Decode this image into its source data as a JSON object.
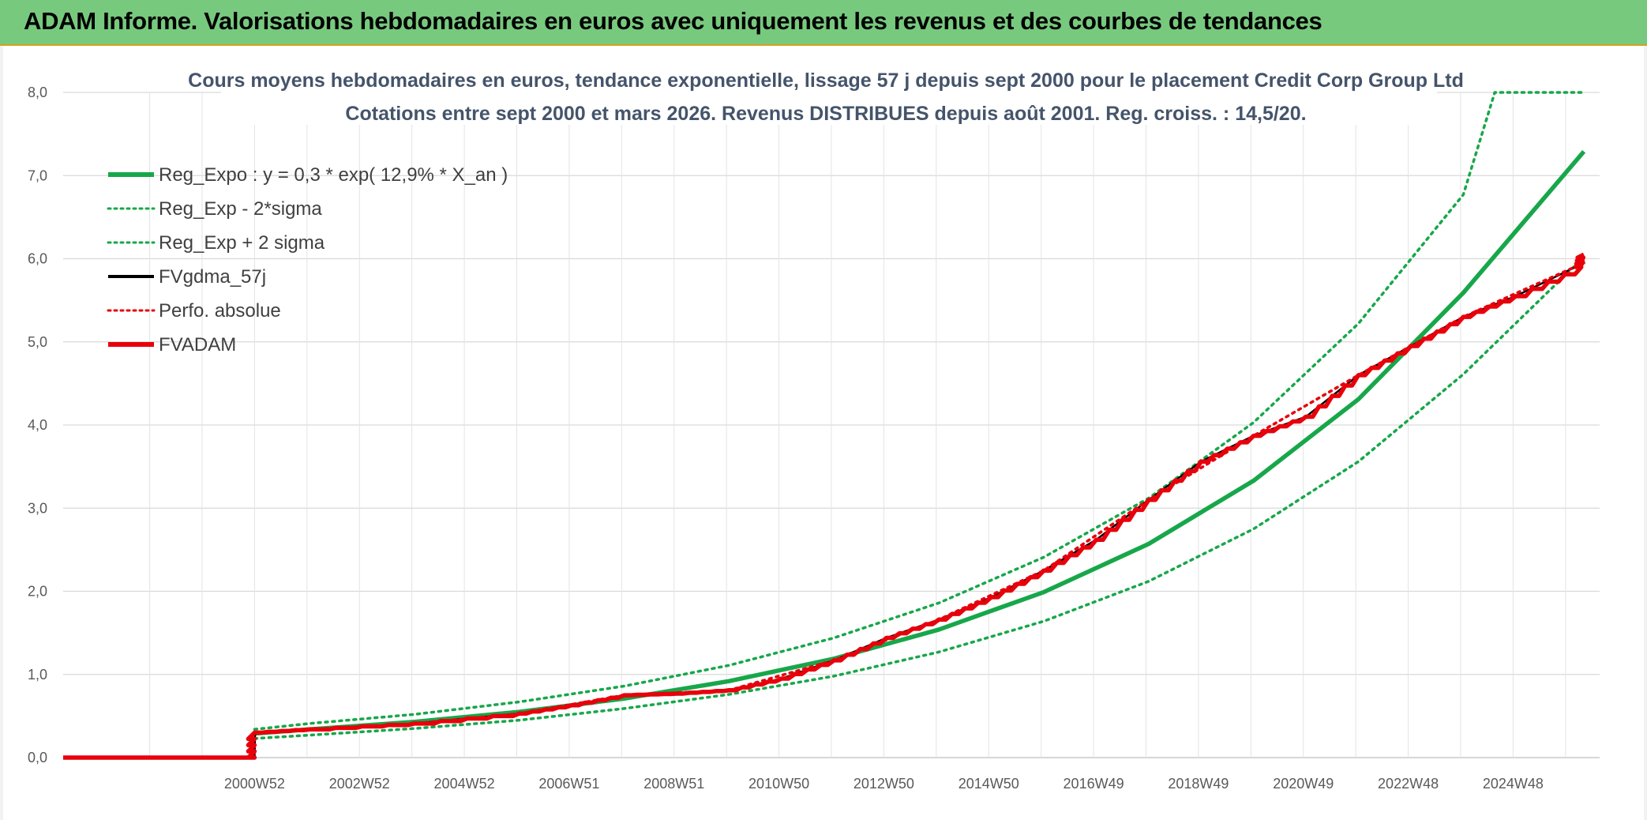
{
  "header": {
    "title": "ADAM Informe. Valorisations hebdomadaires en euros avec uniquement les revenus et des courbes de tendances"
  },
  "chart_data": {
    "type": "line",
    "title": "Cours moyens hebdomadaires en euros, tendance exponentielle, lissage 57 j depuis sept 2000 pour le placement Credit Corp Group Ltd",
    "subtitle": "Cotations entre sept 2000 et mars 2026. Revenus DISTRIBUES depuis août 2001. Reg. croiss. : 14,5/20.",
    "xlabel": "",
    "ylabel": "",
    "ylim": [
      0,
      8
    ],
    "yticks": [
      "0,0",
      "1,0",
      "2,0",
      "3,0",
      "4,0",
      "5,0",
      "6,0",
      "7,0",
      "8,0"
    ],
    "xticks": [
      "2000W52",
      "2002W52",
      "2004W52",
      "2006W51",
      "2008W51",
      "2010W50",
      "2012W50",
      "2014W50",
      "2016W49",
      "2018W49",
      "2020W49",
      "2022W48",
      "2024W48"
    ],
    "xlim": [
      1997.3,
      2026.6
    ],
    "grid": true,
    "legend_position": "top-left",
    "series": [
      {
        "name": "Reg_Expo : y = 0,3 * exp( 12,9% *  X_an )",
        "color": "#17a74a",
        "style": "solid",
        "x": [
          2000.95,
          2002,
          2004,
          2006,
          2008,
          2010,
          2012,
          2014,
          2016,
          2018,
          2020,
          2022,
          2024,
          2026.3
        ],
        "y": [
          0.29,
          0.34,
          0.43,
          0.55,
          0.71,
          0.92,
          1.19,
          1.54,
          1.99,
          2.57,
          3.33,
          4.31,
          5.59,
          7.29
        ]
      },
      {
        "name": "Reg_Exp - 2*sigma",
        "color": "#17a74a",
        "style": "dotted",
        "x": [
          2000.95,
          2002,
          2004,
          2006,
          2008,
          2010,
          2012,
          2014,
          2016,
          2018,
          2020,
          2022,
          2024,
          2026.3
        ],
        "y": [
          0.23,
          0.27,
          0.35,
          0.45,
          0.59,
          0.76,
          0.98,
          1.27,
          1.64,
          2.12,
          2.75,
          3.56,
          4.61,
          6.02
        ]
      },
      {
        "name": "Reg_Exp + 2 sigma",
        "color": "#17a74a",
        "style": "dotted",
        "x": [
          2000.95,
          2002,
          2004,
          2006,
          2008,
          2010,
          2012,
          2014,
          2016,
          2018,
          2020,
          2022,
          2024,
          2024.6,
          2026.3
        ],
        "y": [
          0.34,
          0.41,
          0.52,
          0.67,
          0.86,
          1.11,
          1.44,
          1.86,
          2.41,
          3.12,
          4.03,
          5.22,
          6.77,
          8.0,
          8.0
        ]
      },
      {
        "name": "FVgdma_57j",
        "color": "#000000",
        "style": "solid",
        "x": [
          1997.3,
          2000.95,
          2000.96,
          2002,
          2004,
          2006,
          2007,
          2008,
          2009,
          2010,
          2011,
          2012,
          2013,
          2014,
          2015,
          2016,
          2017,
          2018,
          2019,
          2020,
          2021,
          2022,
          2023,
          2024,
          2025,
          2026.3
        ],
        "y": [
          0,
          0,
          0.3,
          0.34,
          0.41,
          0.53,
          0.63,
          0.75,
          0.77,
          0.81,
          0.95,
          1.17,
          1.44,
          1.66,
          1.93,
          2.25,
          2.62,
          3.1,
          3.56,
          3.87,
          4.1,
          4.6,
          4.95,
          5.3,
          5.55,
          5.95
        ]
      },
      {
        "name": "Perfo. absolue",
        "color": "#e8000b",
        "style": "dotted",
        "x": [
          2000.95,
          2002,
          2004,
          2006,
          2008,
          2010,
          2012,
          2014,
          2016,
          2018,
          2020,
          2022,
          2024,
          2026.3
        ],
        "y": [
          0.3,
          0.34,
          0.41,
          0.53,
          0.75,
          0.81,
          1.17,
          1.66,
          2.25,
          3.1,
          3.87,
          4.6,
          5.3,
          5.95
        ]
      },
      {
        "name": "FVADAM",
        "color": "#e8000b",
        "style": "solid-thick",
        "x": [
          1997.3,
          2000.95,
          2000.95,
          2002,
          2004,
          2006,
          2007,
          2008,
          2009,
          2010,
          2011,
          2012,
          2013,
          2014,
          2015,
          2016,
          2017,
          2018,
          2019,
          2020,
          2021,
          2022,
          2023,
          2024,
          2025,
          2026.25,
          2026.3
        ],
        "y": [
          0,
          0,
          0.3,
          0.34,
          0.41,
          0.53,
          0.63,
          0.75,
          0.77,
          0.81,
          0.95,
          1.17,
          1.44,
          1.66,
          1.93,
          2.25,
          2.62,
          3.1,
          3.56,
          3.87,
          4.1,
          4.6,
          4.95,
          5.3,
          5.55,
          5.9,
          6.05
        ]
      }
    ]
  }
}
